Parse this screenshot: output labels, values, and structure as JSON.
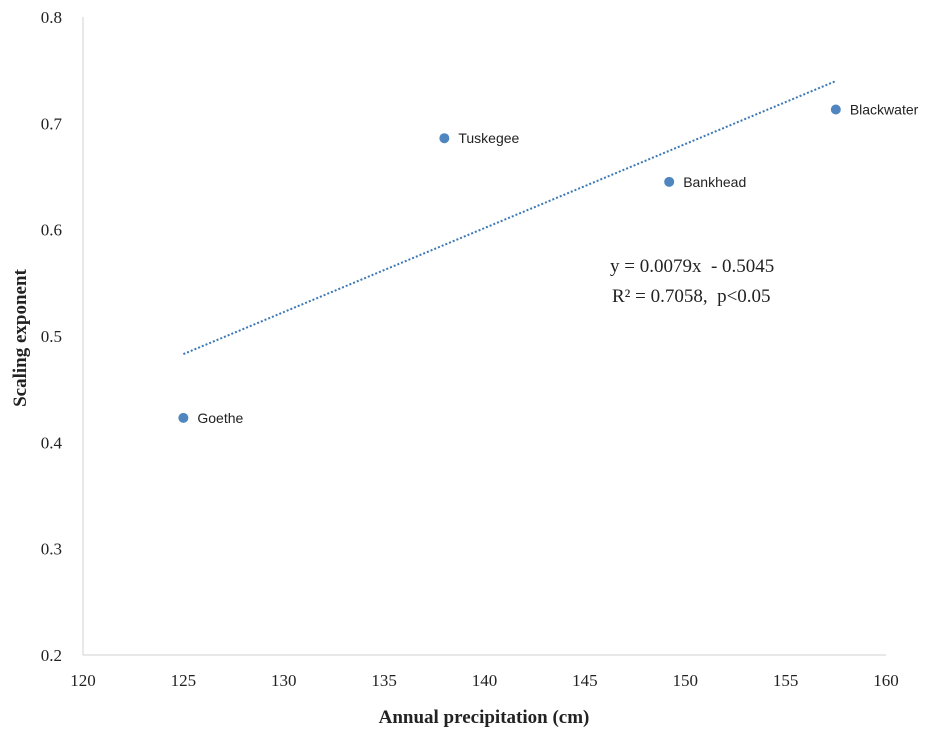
{
  "chart_data": {
    "type": "scatter",
    "xlabel": "Annual precipitation (cm)",
    "ylabel": "Scaling exponent",
    "xlim": [
      120,
      160
    ],
    "ylim": [
      0.2,
      0.8
    ],
    "x_ticks": [
      "120",
      "125",
      "130",
      "135",
      "140",
      "145",
      "150",
      "155",
      "160"
    ],
    "y_ticks": [
      "0.2",
      "0.3",
      "0.4",
      "0.5",
      "0.6",
      "0.7",
      "0.8"
    ],
    "points": [
      {
        "label": "Goethe",
        "x": 125.0,
        "y": 0.423
      },
      {
        "label": "Tuskegee",
        "x": 138.0,
        "y": 0.686
      },
      {
        "label": "Bankhead",
        "x": 149.2,
        "y": 0.645
      },
      {
        "label": "Blackwater",
        "x": 157.5,
        "y": 0.713
      }
    ],
    "trendline": {
      "style": "dotted",
      "x_range": [
        125.0,
        157.5
      ],
      "equation": "y = 0.0079x  - 0.5045",
      "r2_text": "R² = 0.7058,  p<0.05"
    },
    "colors": {
      "marker": "#4f86c0",
      "trendline": "#3b78b5",
      "axis": "#d9d9d9"
    },
    "grid": false,
    "legend": "none"
  }
}
